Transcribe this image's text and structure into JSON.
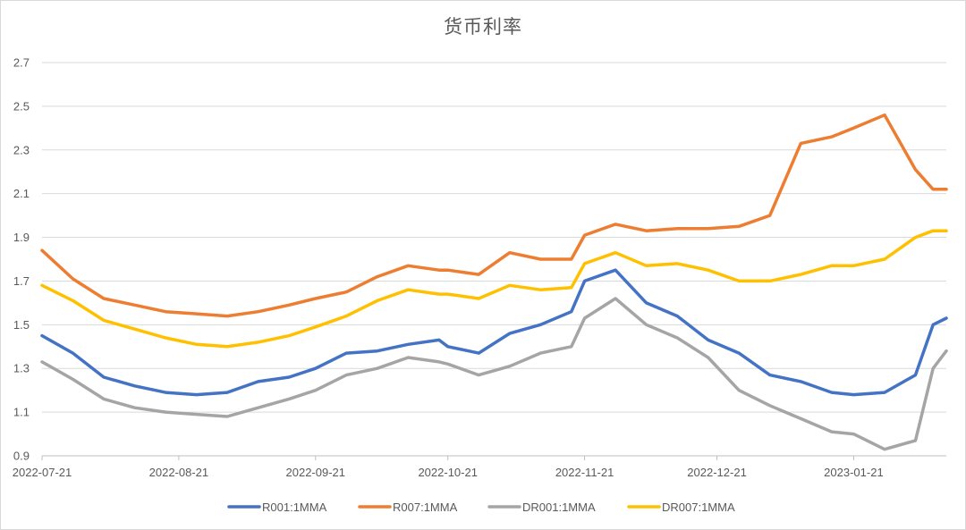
{
  "chart_data": {
    "type": "line",
    "title": "货币利率",
    "xlabel": "",
    "ylabel": "",
    "ylim": [
      0.9,
      2.7
    ],
    "yticks": [
      0.9,
      1.1,
      1.3,
      1.5,
      1.7,
      1.9,
      2.1,
      2.3,
      2.5,
      2.7
    ],
    "x_tick_labels": [
      "2022-07-21",
      "2022-08-21",
      "2022-09-21",
      "2022-10-21",
      "2022-11-21",
      "2022-12-21",
      "2023-01-21"
    ],
    "grid": "horizontal",
    "legend_position": "bottom",
    "x_dates": [
      "2022-07-21",
      "2022-07-28",
      "2022-08-04",
      "2022-08-11",
      "2022-08-18",
      "2022-08-25",
      "2022-09-01",
      "2022-09-08",
      "2022-09-15",
      "2022-09-21",
      "2022-09-28",
      "2022-10-05",
      "2022-10-12",
      "2022-10-19",
      "2022-10-21",
      "2022-10-28",
      "2022-11-04",
      "2022-11-11",
      "2022-11-18",
      "2022-11-21",
      "2022-11-28",
      "2022-12-05",
      "2022-12-12",
      "2022-12-19",
      "2022-12-26",
      "2023-01-02",
      "2023-01-09",
      "2023-01-16",
      "2023-01-21",
      "2023-01-28",
      "2023-02-04",
      "2023-02-08",
      "2023-02-11"
    ],
    "series": [
      {
        "name": "R001:1MMA",
        "color": "#4472C4",
        "values": [
          1.45,
          1.37,
          1.26,
          1.22,
          1.19,
          1.18,
          1.19,
          1.24,
          1.26,
          1.3,
          1.37,
          1.38,
          1.41,
          1.43,
          1.4,
          1.37,
          1.46,
          1.5,
          1.56,
          1.7,
          1.75,
          1.6,
          1.54,
          1.43,
          1.37,
          1.27,
          1.24,
          1.19,
          1.18,
          1.19,
          1.27,
          1.5,
          1.53
        ]
      },
      {
        "name": "R007:1MMA",
        "color": "#ED7D31",
        "values": [
          1.84,
          1.71,
          1.62,
          1.59,
          1.56,
          1.55,
          1.54,
          1.56,
          1.59,
          1.62,
          1.65,
          1.72,
          1.77,
          1.75,
          1.75,
          1.73,
          1.83,
          1.8,
          1.8,
          1.91,
          1.96,
          1.93,
          1.94,
          1.94,
          1.95,
          2.0,
          2.33,
          2.36,
          2.4,
          2.46,
          2.21,
          2.12,
          2.12
        ]
      },
      {
        "name": "DR001:1MMA",
        "color": "#A5A5A5",
        "values": [
          1.33,
          1.25,
          1.16,
          1.12,
          1.1,
          1.09,
          1.08,
          1.12,
          1.16,
          1.2,
          1.27,
          1.3,
          1.35,
          1.33,
          1.32,
          1.27,
          1.31,
          1.37,
          1.4,
          1.53,
          1.62,
          1.5,
          1.44,
          1.35,
          1.2,
          1.13,
          1.07,
          1.01,
          1.0,
          0.93,
          0.97,
          1.3,
          1.38
        ]
      },
      {
        "name": "DR007:1MMA",
        "color": "#FFC000",
        "values": [
          1.68,
          1.61,
          1.52,
          1.48,
          1.44,
          1.41,
          1.4,
          1.42,
          1.45,
          1.49,
          1.54,
          1.61,
          1.66,
          1.64,
          1.64,
          1.62,
          1.68,
          1.66,
          1.67,
          1.78,
          1.83,
          1.77,
          1.78,
          1.75,
          1.7,
          1.7,
          1.73,
          1.77,
          1.77,
          1.8,
          1.9,
          1.93,
          1.93
        ]
      }
    ]
  }
}
